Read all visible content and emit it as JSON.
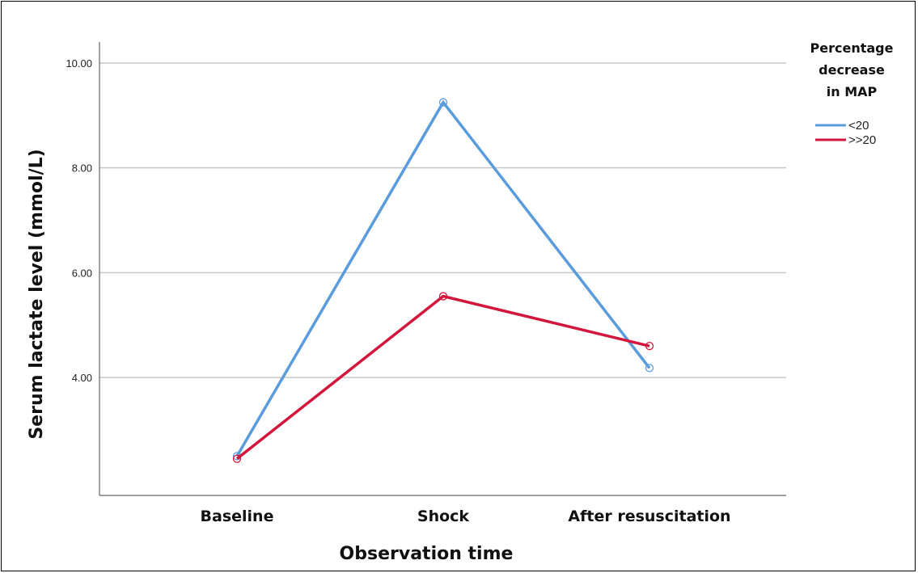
{
  "chart_data": {
    "type": "line",
    "title": "",
    "xlabel": "Observation time",
    "ylabel": "Serum lactate level (mmol/L)",
    "categories": [
      "Baseline",
      "Shock",
      "After resuscitation"
    ],
    "yticks": [
      "4.00",
      "6.00",
      "8.00",
      "10.00"
    ],
    "ylim": [
      1.75,
      10.4
    ],
    "grid": true,
    "legend_position": "top-right",
    "legend_title_lines": [
      "Percentage",
      "decrease",
      "in MAP"
    ],
    "series": [
      {
        "name": "<20",
        "values": [
          2.5,
          9.25,
          4.18
        ],
        "color": "#5a9bdc"
      },
      {
        "name": ">>20",
        "values": [
          2.45,
          5.55,
          4.6
        ],
        "color": "#d2163c"
      }
    ]
  }
}
